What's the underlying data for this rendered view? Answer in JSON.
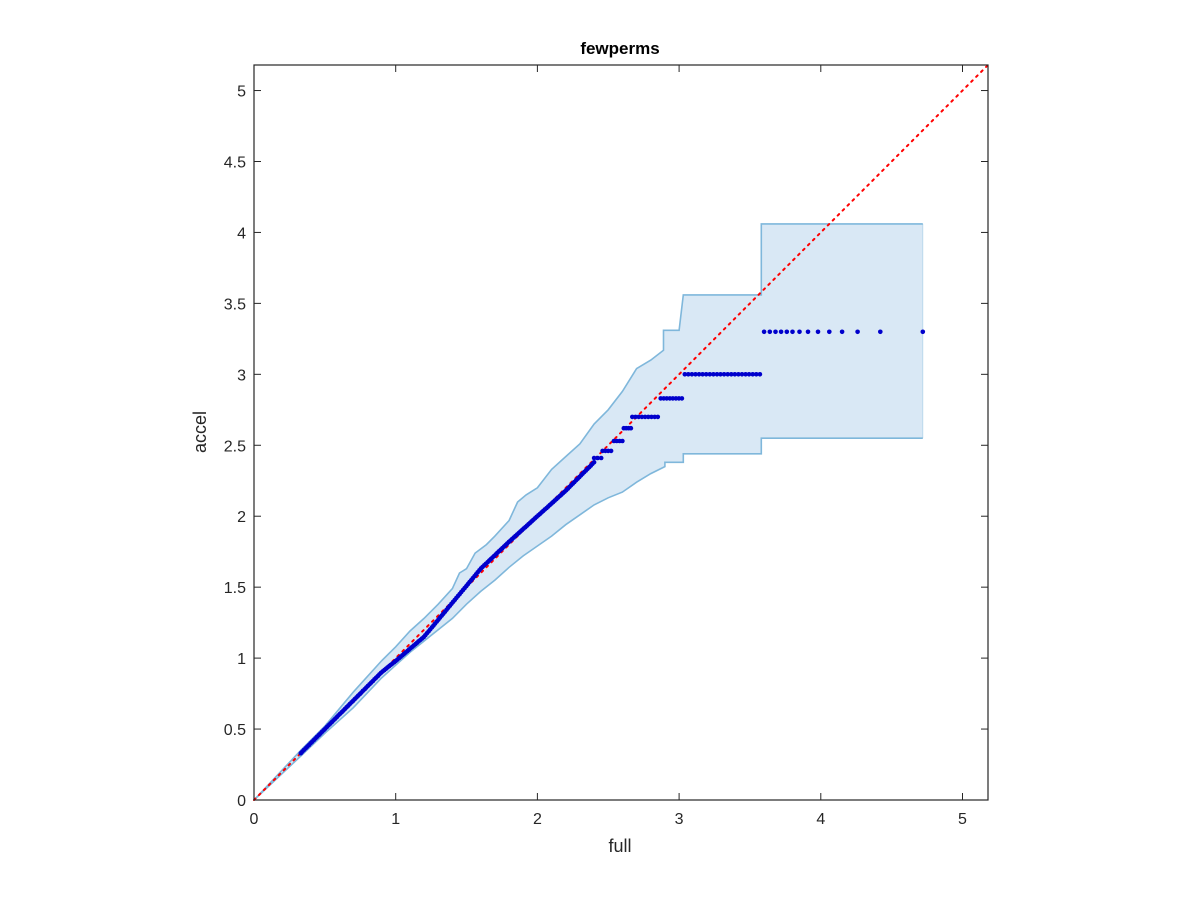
{
  "chart_data": {
    "type": "scatter",
    "title": "fewperms",
    "xlabel": "full",
    "ylabel": "accel",
    "xlim": [
      0,
      5.18
    ],
    "ylim": [
      0,
      5.18
    ],
    "xticks": [
      0,
      1,
      2,
      3,
      4,
      5
    ],
    "xtick_labels": [
      "0",
      "1",
      "2",
      "3",
      "4",
      "5"
    ],
    "yticks": [
      0,
      0.5,
      1,
      1.5,
      2,
      2.5,
      3,
      3.5,
      4,
      4.5,
      5
    ],
    "ytick_labels": [
      "0",
      "0.5",
      "1",
      "1.5",
      "2",
      "2.5",
      "3",
      "3.5",
      "4",
      "4.5",
      "5"
    ],
    "grid": false,
    "colors": {
      "points": "#0000cc",
      "band_fill": "#d9e8f5",
      "band_edge": "#7fb7db",
      "reference_line": "#ff0000",
      "axes": "#262626"
    },
    "reference_line": {
      "from": [
        0,
        0
      ],
      "to": [
        5.18,
        5.18
      ],
      "style": "dotted"
    },
    "band": {
      "upper": [
        [
          0,
          0
        ],
        [
          0.33,
          0.35
        ],
        [
          0.5,
          0.52
        ],
        [
          0.7,
          0.76
        ],
        [
          0.9,
          0.98
        ],
        [
          1.0,
          1.08
        ],
        [
          1.1,
          1.19
        ],
        [
          1.2,
          1.28
        ],
        [
          1.3,
          1.38
        ],
        [
          1.4,
          1.49
        ],
        [
          1.45,
          1.6
        ],
        [
          1.5,
          1.63
        ],
        [
          1.56,
          1.74
        ],
        [
          1.64,
          1.8
        ],
        [
          1.7,
          1.86
        ],
        [
          1.8,
          1.97
        ],
        [
          1.86,
          2.1
        ],
        [
          1.92,
          2.15
        ],
        [
          2.0,
          2.2
        ],
        [
          2.1,
          2.33
        ],
        [
          2.2,
          2.42
        ],
        [
          2.3,
          2.51
        ],
        [
          2.4,
          2.65
        ],
        [
          2.5,
          2.75
        ],
        [
          2.6,
          2.88
        ],
        [
          2.7,
          3.04
        ],
        [
          2.8,
          3.1
        ],
        [
          2.89,
          3.17
        ],
        [
          2.89,
          3.31
        ],
        [
          3.0,
          3.31
        ],
        [
          3.03,
          3.56
        ],
        [
          3.58,
          3.56
        ],
        [
          3.58,
          4.06
        ],
        [
          4.72,
          4.06
        ]
      ],
      "lower": [
        [
          0,
          0
        ],
        [
          0.33,
          0.31
        ],
        [
          0.5,
          0.47
        ],
        [
          0.7,
          0.65
        ],
        [
          0.9,
          0.86
        ],
        [
          1.0,
          0.95
        ],
        [
          1.1,
          1.04
        ],
        [
          1.2,
          1.12
        ],
        [
          1.3,
          1.2
        ],
        [
          1.4,
          1.28
        ],
        [
          1.5,
          1.38
        ],
        [
          1.6,
          1.47
        ],
        [
          1.7,
          1.55
        ],
        [
          1.8,
          1.64
        ],
        [
          1.9,
          1.72
        ],
        [
          2.0,
          1.79
        ],
        [
          2.1,
          1.86
        ],
        [
          2.2,
          1.94
        ],
        [
          2.3,
          2.01
        ],
        [
          2.4,
          2.08
        ],
        [
          2.5,
          2.13
        ],
        [
          2.6,
          2.17
        ],
        [
          2.7,
          2.24
        ],
        [
          2.8,
          2.3
        ],
        [
          2.9,
          2.35
        ],
        [
          2.9,
          2.38
        ],
        [
          3.03,
          2.38
        ],
        [
          3.03,
          2.44
        ],
        [
          3.58,
          2.44
        ],
        [
          3.58,
          2.55
        ],
        [
          4.72,
          2.55
        ]
      ]
    },
    "points_trend": {
      "x_start": 0.33,
      "x_end": 2.4,
      "count": 180,
      "curve": [
        [
          0.33,
          0.33
        ],
        [
          0.5,
          0.5
        ],
        [
          0.7,
          0.7
        ],
        [
          0.9,
          0.9
        ],
        [
          1.0,
          0.98
        ],
        [
          1.2,
          1.15
        ],
        [
          1.4,
          1.39
        ],
        [
          1.6,
          1.63
        ],
        [
          1.8,
          1.82
        ],
        [
          2.0,
          2.0
        ],
        [
          2.2,
          2.18
        ],
        [
          2.4,
          2.38
        ]
      ]
    },
    "point_plateaus": [
      {
        "y": 2.41,
        "x_start": 2.4,
        "x_end": 2.45,
        "count": 3
      },
      {
        "y": 2.46,
        "x_start": 2.46,
        "x_end": 2.52,
        "count": 4
      },
      {
        "y": 2.53,
        "x_start": 2.54,
        "x_end": 2.6,
        "count": 4
      },
      {
        "y": 2.62,
        "x_start": 2.61,
        "x_end": 2.66,
        "count": 4
      },
      {
        "y": 2.7,
        "x_start": 2.67,
        "x_end": 2.85,
        "count": 9
      },
      {
        "y": 2.83,
        "x_start": 2.87,
        "x_end": 3.02,
        "count": 8
      },
      {
        "y": 3.0,
        "x_start": 3.04,
        "x_end": 3.57,
        "count": 22
      },
      {
        "y": 3.3,
        "x_start": 3.6,
        "x_end": 4.72,
        "x_values": [
          3.6,
          3.64,
          3.68,
          3.72,
          3.76,
          3.8,
          3.85,
          3.91,
          3.98,
          4.06,
          4.15,
          4.26,
          4.42,
          4.72
        ]
      }
    ]
  }
}
